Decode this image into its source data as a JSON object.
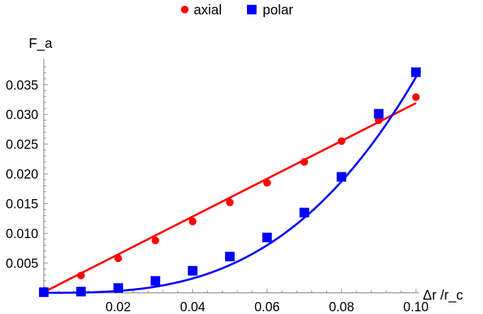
{
  "chart_data": {
    "type": "scatter",
    "title": "",
    "xlabel": "Δr /r_c",
    "ylabel": "F_a",
    "xlim": [
      0,
      0.1
    ],
    "ylim": [
      0,
      0.039
    ],
    "x_ticks": [
      "0.02",
      "0.04",
      "0.06",
      "0.08",
      "0.10"
    ],
    "x_tick_values": [
      0.02,
      0.04,
      0.06,
      0.08,
      0.1
    ],
    "y_ticks": [
      "0.005",
      "0.010",
      "0.015",
      "0.020",
      "0.025",
      "0.030",
      "0.035"
    ],
    "y_tick_values": [
      0.005,
      0.01,
      0.015,
      0.02,
      0.025,
      0.03,
      0.035
    ],
    "legend_position": "top-center",
    "grid": false,
    "series": [
      {
        "name": "axial",
        "marker": "circle",
        "color": "#ff0000",
        "x": [
          0,
          0.01,
          0.02,
          0.03,
          0.04,
          0.05,
          0.06,
          0.07,
          0.08,
          0.09,
          0.1
        ],
        "y": [
          0.0001,
          0.0029,
          0.0058,
          0.0088,
          0.012,
          0.0152,
          0.0185,
          0.022,
          0.0255,
          0.029,
          0.0329
        ],
        "fit": {
          "kind": "linear",
          "y_at_0": 0.0001,
          "y_at_max": 0.0319
        }
      },
      {
        "name": "polar",
        "marker": "square",
        "color": "#0000ff",
        "x": [
          0,
          0.01,
          0.02,
          0.03,
          0.04,
          0.05,
          0.06,
          0.07,
          0.08,
          0.09,
          0.1
        ],
        "y": [
          0.0001,
          0.0002,
          0.0008,
          0.002,
          0.0037,
          0.0061,
          0.0093,
          0.0135,
          0.0195,
          0.0301,
          0.0371
        ],
        "fit": {
          "kind": "power",
          "coef": 33.08,
          "exponent": 2.96,
          "x_start": 0.0,
          "x_end": 0.1002
        }
      }
    ]
  }
}
